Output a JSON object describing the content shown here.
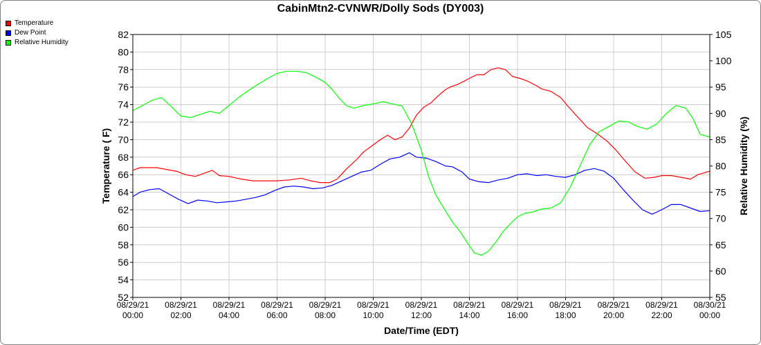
{
  "chart_data": {
    "type": "line",
    "title": "CabinMtn2-CVNWR/Dolly Sods (DY003)",
    "xlabel": "Date/Time (EDT)",
    "ylabel": "Temperature ( F)",
    "y2label": "Relative Humidity (%)",
    "xlim": [
      0,
      24
    ],
    "ylim": [
      52,
      82
    ],
    "y2lim": [
      55,
      105
    ],
    "yticks": [
      "52",
      "54",
      "56",
      "58",
      "60",
      "62",
      "64",
      "66",
      "68",
      "70",
      "72",
      "74",
      "76",
      "78",
      "80",
      "82"
    ],
    "y2ticks": [
      "55",
      "60",
      "65",
      "70",
      "75",
      "80",
      "85",
      "90",
      "95",
      "100",
      "105"
    ],
    "xticks": [
      {
        "x": 0,
        "date": "08/29/21",
        "time": "00:00"
      },
      {
        "x": 2,
        "date": "08/29/21",
        "time": "02:00"
      },
      {
        "x": 4,
        "date": "08/29/21",
        "time": "04:00"
      },
      {
        "x": 6,
        "date": "08/29/21",
        "time": "06:00"
      },
      {
        "x": 8,
        "date": "08/29/21",
        "time": "08:00"
      },
      {
        "x": 10,
        "date": "08/29/21",
        "time": "10:00"
      },
      {
        "x": 12,
        "date": "08/29/21",
        "time": "12:00"
      },
      {
        "x": 14,
        "date": "08/29/21",
        "time": "14:00"
      },
      {
        "x": 16,
        "date": "08/29/21",
        "time": "16:00"
      },
      {
        "x": 18,
        "date": "08/29/21",
        "time": "18:00"
      },
      {
        "x": 20,
        "date": "08/29/21",
        "time": "20:00"
      },
      {
        "x": 22,
        "date": "08/29/21",
        "time": "22:00"
      },
      {
        "x": 24,
        "date": "08/30/21",
        "time": "00:00"
      }
    ],
    "grid": true,
    "legend_position": "top-left",
    "series": [
      {
        "name": "Temperature",
        "color": "#ff0000",
        "axis": "left",
        "points": [
          [
            0,
            66.5
          ],
          [
            0.3,
            66.8
          ],
          [
            0.6,
            66.8
          ],
          [
            1,
            66.8
          ],
          [
            1.4,
            66.6
          ],
          [
            1.8,
            66.4
          ],
          [
            2.2,
            66.0
          ],
          [
            2.6,
            65.8
          ],
          [
            3,
            66.2
          ],
          [
            3.3,
            66.5
          ],
          [
            3.6,
            65.9
          ],
          [
            4,
            65.8
          ],
          [
            4.5,
            65.5
          ],
          [
            5,
            65.3
          ],
          [
            5.5,
            65.3
          ],
          [
            6,
            65.3
          ],
          [
            6.5,
            65.4
          ],
          [
            7,
            65.6
          ],
          [
            7.4,
            65.3
          ],
          [
            7.8,
            65.1
          ],
          [
            8.2,
            65.1
          ],
          [
            8.5,
            65.5
          ],
          [
            8.9,
            66.7
          ],
          [
            9.3,
            67.7
          ],
          [
            9.6,
            68.6
          ],
          [
            10,
            69.4
          ],
          [
            10.3,
            70.0
          ],
          [
            10.6,
            70.5
          ],
          [
            10.9,
            70.0
          ],
          [
            11.2,
            70.3
          ],
          [
            11.5,
            71.3
          ],
          [
            11.8,
            72.8
          ],
          [
            12.1,
            73.7
          ],
          [
            12.4,
            74.2
          ],
          [
            12.7,
            75.0
          ],
          [
            13,
            75.7
          ],
          [
            13.2,
            76.0
          ],
          [
            13.5,
            76.3
          ],
          [
            13.8,
            76.7
          ],
          [
            14,
            77.0
          ],
          [
            14.3,
            77.4
          ],
          [
            14.6,
            77.4
          ],
          [
            14.9,
            78.0
          ],
          [
            15.2,
            78.2
          ],
          [
            15.5,
            78.0
          ],
          [
            15.8,
            77.2
          ],
          [
            16.1,
            77.0
          ],
          [
            16.4,
            76.7
          ],
          [
            16.7,
            76.3
          ],
          [
            17,
            75.8
          ],
          [
            17.4,
            75.5
          ],
          [
            17.8,
            74.8
          ],
          [
            18.1,
            73.8
          ],
          [
            18.5,
            72.6
          ],
          [
            18.9,
            71.4
          ],
          [
            19.3,
            70.7
          ],
          [
            19.7,
            69.9
          ],
          [
            20.1,
            68.8
          ],
          [
            20.5,
            67.5
          ],
          [
            20.9,
            66.3
          ],
          [
            21.3,
            65.6
          ],
          [
            21.7,
            65.7
          ],
          [
            22,
            65.9
          ],
          [
            22.4,
            65.9
          ],
          [
            22.8,
            65.7
          ],
          [
            23.2,
            65.5
          ],
          [
            23.5,
            66.0
          ],
          [
            24,
            66.4
          ]
        ]
      },
      {
        "name": "Dew Point",
        "color": "#0000ff",
        "axis": "left",
        "points": [
          [
            0,
            63.5
          ],
          [
            0.3,
            64.0
          ],
          [
            0.7,
            64.3
          ],
          [
            1.1,
            64.4
          ],
          [
            1.5,
            63.8
          ],
          [
            1.9,
            63.2
          ],
          [
            2.3,
            62.7
          ],
          [
            2.7,
            63.1
          ],
          [
            3.1,
            63.0
          ],
          [
            3.5,
            62.8
          ],
          [
            3.9,
            62.9
          ],
          [
            4.3,
            63.0
          ],
          [
            4.7,
            63.2
          ],
          [
            5.1,
            63.4
          ],
          [
            5.5,
            63.7
          ],
          [
            5.9,
            64.2
          ],
          [
            6.3,
            64.6
          ],
          [
            6.7,
            64.7
          ],
          [
            7.1,
            64.6
          ],
          [
            7.5,
            64.4
          ],
          [
            7.9,
            64.5
          ],
          [
            8.3,
            64.8
          ],
          [
            8.7,
            65.3
          ],
          [
            9.1,
            65.8
          ],
          [
            9.5,
            66.3
          ],
          [
            9.9,
            66.5
          ],
          [
            10.3,
            67.2
          ],
          [
            10.7,
            67.8
          ],
          [
            11.1,
            68.0
          ],
          [
            11.5,
            68.5
          ],
          [
            11.8,
            68.0
          ],
          [
            12.2,
            67.9
          ],
          [
            12.6,
            67.5
          ],
          [
            13,
            67.0
          ],
          [
            13.3,
            66.9
          ],
          [
            13.7,
            66.3
          ],
          [
            14,
            65.5
          ],
          [
            14.4,
            65.2
          ],
          [
            14.8,
            65.1
          ],
          [
            15.2,
            65.4
          ],
          [
            15.6,
            65.6
          ],
          [
            16,
            66.0
          ],
          [
            16.4,
            66.1
          ],
          [
            16.8,
            65.9
          ],
          [
            17.2,
            66.0
          ],
          [
            17.6,
            65.8
          ],
          [
            18,
            65.7
          ],
          [
            18.4,
            66.0
          ],
          [
            18.8,
            66.5
          ],
          [
            19.2,
            66.7
          ],
          [
            19.6,
            66.4
          ],
          [
            20,
            65.6
          ],
          [
            20.4,
            64.3
          ],
          [
            20.8,
            63.1
          ],
          [
            21.2,
            62.0
          ],
          [
            21.6,
            61.5
          ],
          [
            22,
            62.0
          ],
          [
            22.4,
            62.6
          ],
          [
            22.8,
            62.6
          ],
          [
            23.2,
            62.2
          ],
          [
            23.6,
            61.8
          ],
          [
            24,
            61.9
          ]
        ]
      },
      {
        "name": "Relative Humidity",
        "color": "#00ff00",
        "axis": "right",
        "points": [
          [
            0,
            90.5
          ],
          [
            0.4,
            91.5
          ],
          [
            0.8,
            92.5
          ],
          [
            1.2,
            93.0
          ],
          [
            1.6,
            91.3
          ],
          [
            2,
            89.5
          ],
          [
            2.4,
            89.2
          ],
          [
            2.8,
            89.8
          ],
          [
            3.2,
            90.4
          ],
          [
            3.6,
            90.0
          ],
          [
            4,
            91.5
          ],
          [
            4.4,
            93.0
          ],
          [
            4.8,
            94.3
          ],
          [
            5.2,
            95.5
          ],
          [
            5.6,
            96.6
          ],
          [
            6,
            97.6
          ],
          [
            6.4,
            98.0
          ],
          [
            6.8,
            98.0
          ],
          [
            7.2,
            97.8
          ],
          [
            7.6,
            96.9
          ],
          [
            8,
            95.9
          ],
          [
            8.3,
            94.5
          ],
          [
            8.6,
            92.8
          ],
          [
            8.9,
            91.4
          ],
          [
            9.2,
            91.0
          ],
          [
            9.6,
            91.5
          ],
          [
            10,
            91.8
          ],
          [
            10.4,
            92.2
          ],
          [
            10.8,
            91.8
          ],
          [
            11.2,
            91.4
          ],
          [
            11.6,
            88.0
          ],
          [
            12,
            83.0
          ],
          [
            12.3,
            78.0
          ],
          [
            12.6,
            74.5
          ],
          [
            13,
            71.5
          ],
          [
            13.3,
            69.3
          ],
          [
            13.6,
            67.6
          ],
          [
            13.9,
            65.5
          ],
          [
            14.2,
            63.5
          ],
          [
            14.5,
            63.0
          ],
          [
            14.8,
            63.8
          ],
          [
            15.1,
            65.5
          ],
          [
            15.4,
            67.5
          ],
          [
            15.7,
            69.0
          ],
          [
            16,
            70.3
          ],
          [
            16.3,
            71.0
          ],
          [
            16.6,
            71.2
          ],
          [
            17,
            71.8
          ],
          [
            17.4,
            72.0
          ],
          [
            17.8,
            73.0
          ],
          [
            18.2,
            76.0
          ],
          [
            18.6,
            80.0
          ],
          [
            19,
            84.0
          ],
          [
            19.4,
            86.5
          ],
          [
            19.8,
            87.5
          ],
          [
            20.2,
            88.5
          ],
          [
            20.6,
            88.4
          ],
          [
            21,
            87.5
          ],
          [
            21.4,
            87.0
          ],
          [
            21.8,
            88.0
          ],
          [
            22.2,
            90.0
          ],
          [
            22.6,
            91.5
          ],
          [
            23,
            91.0
          ],
          [
            23.3,
            89.0
          ],
          [
            23.6,
            86.0
          ],
          [
            24,
            85.5
          ]
        ]
      }
    ]
  }
}
